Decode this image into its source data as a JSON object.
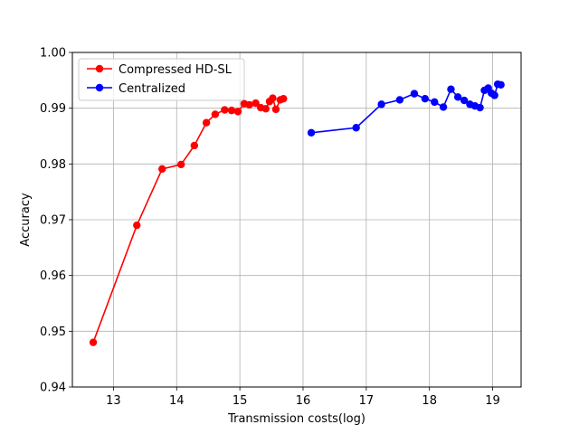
{
  "chart_data": {
    "type": "line",
    "title": "",
    "xlabel": "Transmission costs(log)",
    "ylabel": "Accuracy",
    "xlim": [
      12.35,
      19.45
    ],
    "ylim": [
      0.94,
      1.0
    ],
    "x_ticks": [
      13,
      14,
      15,
      16,
      17,
      18,
      19
    ],
    "x_tick_labels": [
      "13",
      "14",
      "15",
      "16",
      "17",
      "18",
      "19"
    ],
    "y_ticks": [
      0.94,
      0.95,
      0.96,
      0.97,
      0.98,
      0.99,
      1.0
    ],
    "y_tick_labels": [
      "0.94",
      "0.95",
      "0.96",
      "0.97",
      "0.98",
      "0.99",
      "1.00"
    ],
    "grid": true,
    "legend_position": "top-left",
    "series": [
      {
        "name": "Compressed HD-SL",
        "color": "#ff0000",
        "marker": "circle",
        "x": [
          12.68,
          13.37,
          13.77,
          14.07,
          14.28,
          14.47,
          14.61,
          14.76,
          14.87,
          14.97,
          15.07,
          15.15,
          15.25,
          15.33,
          15.41,
          15.47,
          15.52,
          15.57,
          15.64,
          15.69
        ],
        "y": [
          0.948,
          0.969,
          0.9791,
          0.9799,
          0.9833,
          0.9874,
          0.9889,
          0.9897,
          0.9896,
          0.9894,
          0.9908,
          0.9906,
          0.9909,
          0.9901,
          0.9899,
          0.9912,
          0.9918,
          0.9898,
          0.9915,
          0.9917
        ]
      },
      {
        "name": "Centralized",
        "color": "#0000ff",
        "marker": "circle",
        "x": [
          16.13,
          16.84,
          17.24,
          17.53,
          17.76,
          17.93,
          18.08,
          18.22,
          18.34,
          18.45,
          18.55,
          18.64,
          18.72,
          18.8,
          18.87,
          18.93,
          18.98,
          19.03,
          19.08,
          19.13
        ],
        "y": [
          0.9856,
          0.9865,
          0.9907,
          0.9915,
          0.9926,
          0.9917,
          0.9911,
          0.9902,
          0.9934,
          0.992,
          0.9914,
          0.9907,
          0.9904,
          0.9901,
          0.9932,
          0.9936,
          0.9927,
          0.9923,
          0.9943,
          0.9942
        ]
      }
    ]
  }
}
